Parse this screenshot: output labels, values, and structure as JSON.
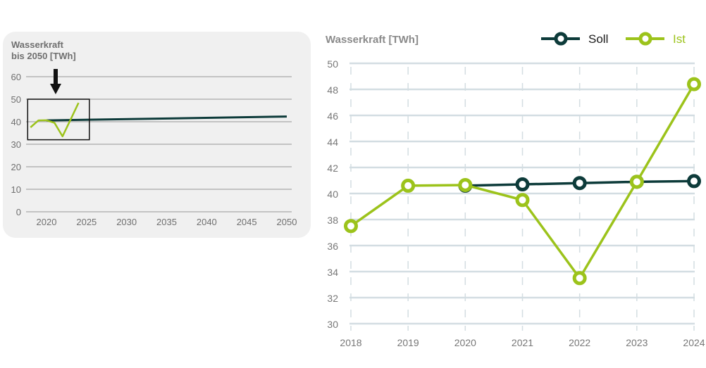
{
  "chart_data": [
    {
      "type": "line",
      "title": "Wasserkraft bis 2050 [TWh]",
      "title_lines": [
        "Wasserkraft",
        "bis 2050 [TWh]"
      ],
      "xlabel": "",
      "ylabel": "",
      "x_ticks": [
        2020,
        2025,
        2030,
        2035,
        2040,
        2045,
        2050
      ],
      "y_ticks": [
        0,
        10,
        20,
        30,
        40,
        50,
        60
      ],
      "xlim": [
        2017.5,
        2050
      ],
      "ylim": [
        0,
        60
      ],
      "grid": "horizontal",
      "series": [
        {
          "name": "Soll",
          "color": "#0d3b3a",
          "x": [
            2020,
            2050
          ],
          "y": [
            40.6,
            42.3
          ]
        },
        {
          "name": "Ist",
          "color": "#9cc31b",
          "x": [
            2018,
            2019,
            2020,
            2021,
            2022,
            2023,
            2024
          ],
          "y": [
            37.5,
            40.6,
            40.65,
            39.5,
            33.5,
            40.9,
            48.4
          ]
        }
      ],
      "annotations": {
        "highlight_box": {
          "x": [
            2018,
            2025
          ],
          "y": [
            32,
            50
          ]
        },
        "arrow": "down-arrow pointing to highlight box"
      },
      "background": "#f0f0f0"
    },
    {
      "type": "line",
      "title": "Wasserkraft [TWh]",
      "xlabel": "",
      "ylabel": "",
      "categories": [
        "2018",
        "2019",
        "2020",
        "2021",
        "2022",
        "2023",
        "2024"
      ],
      "y_ticks": [
        30,
        32,
        34,
        36,
        38,
        40,
        42,
        44,
        46,
        48,
        50
      ],
      "ylim": [
        30,
        50
      ],
      "grid": "both",
      "legend": "top-right",
      "series": [
        {
          "name": "Soll",
          "color": "#0d3b3a",
          "values": [
            null,
            null,
            40.6,
            40.7,
            40.8,
            40.9,
            40.95
          ]
        },
        {
          "name": "Ist",
          "color": "#9cc31b",
          "values": [
            37.5,
            40.6,
            40.65,
            39.5,
            33.5,
            40.9,
            48.4
          ]
        }
      ]
    }
  ]
}
